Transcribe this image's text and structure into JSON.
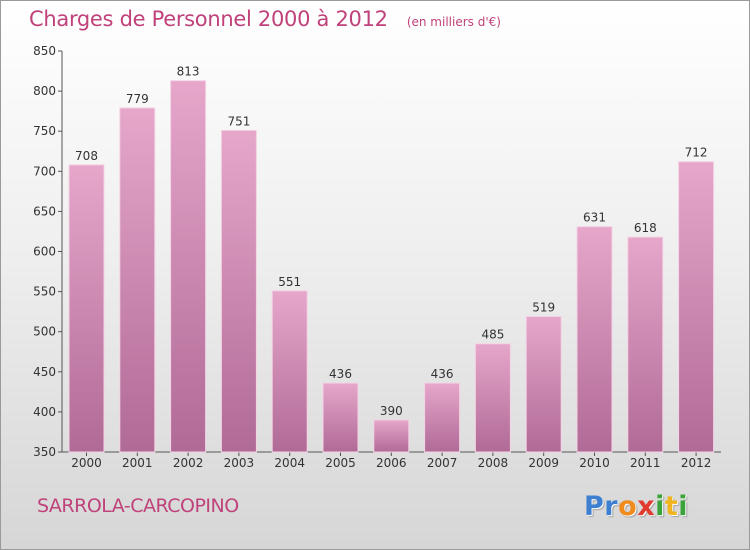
{
  "chart_data": {
    "type": "bar",
    "title": "Charges de Personnel 2000 à 2012",
    "subtitle": "(en milliers d'€)",
    "categories": [
      "2000",
      "2001",
      "2002",
      "2003",
      "2004",
      "2005",
      "2006",
      "2007",
      "2008",
      "2009",
      "2010",
      "2011",
      "2012"
    ],
    "values": [
      708,
      779,
      813,
      751,
      551,
      436,
      390,
      436,
      485,
      519,
      631,
      618,
      712
    ],
    "ylim": [
      350,
      850
    ],
    "yticks": [
      350,
      400,
      450,
      500,
      550,
      600,
      650,
      700,
      750,
      800,
      850
    ],
    "grid": false,
    "legend": "none"
  },
  "footer": {
    "city": "SARROLA-CARCOPINO",
    "logo_letters": [
      "P",
      "r",
      "o",
      "x",
      "i",
      "t",
      "i"
    ]
  },
  "colors": {
    "title": "#c0427a",
    "bar_top": "#e6a7cb",
    "bar_bottom": "#b06a96",
    "logo": [
      "#3d7fd0",
      "#3d7fd0",
      "#f08c1e",
      "#e03b2e",
      "#3aa43a",
      "#f0b41e",
      "#3aa43a"
    ]
  }
}
